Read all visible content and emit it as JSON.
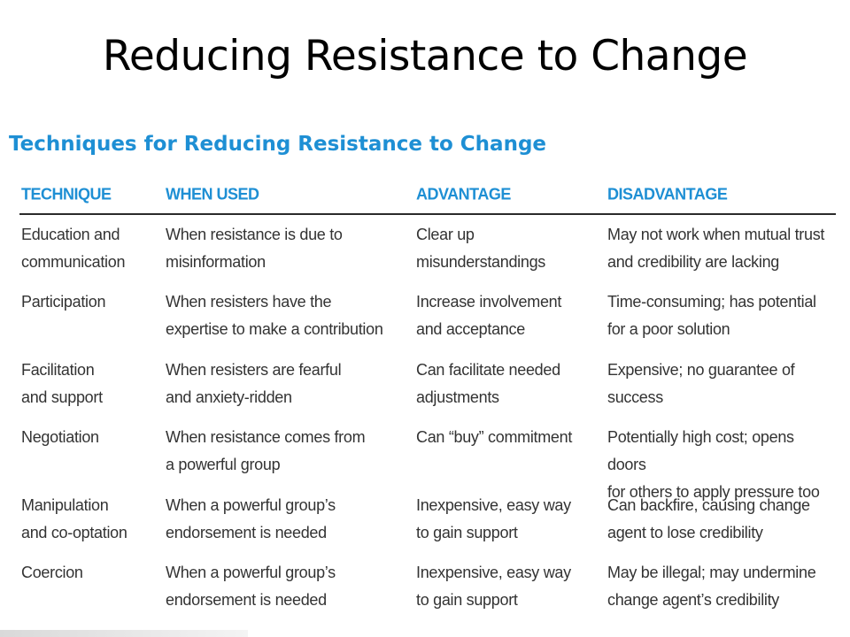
{
  "title": "Reducing Resistance to Change",
  "subtitle": "Techniques for Reducing Resistance to Change",
  "table": {
    "headers": [
      "TECHNIQUE",
      "WHEN USED",
      "ADVANTAGE",
      "DISADVANTAGE"
    ],
    "rows": [
      [
        "Education and\ncommunication",
        "When resistance is due to\nmisinformation",
        "Clear up\nmisunderstandings",
        "May not work when mutual trust\nand credibility are lacking"
      ],
      [
        "Participation",
        "When resisters have the\nexpertise to make a contribution",
        "Increase involvement\nand acceptance",
        "Time-consuming; has potential\nfor a poor solution"
      ],
      [
        "Facilitation\nand support",
        "When resisters are fearful\nand anxiety-ridden",
        "Can facilitate needed\nadjustments",
        "Expensive; no guarantee of\nsuccess"
      ],
      [
        "Negotiation",
        "When resistance comes from\na powerful group",
        "Can “buy” commitment",
        "Potentially high cost; opens doors\nfor others to apply pressure too"
      ],
      [
        "Manipulation\nand co-optation",
        "When a powerful group’s\nendorsement is needed",
        "Inexpensive, easy way\nto gain support",
        "Can backfire, causing change\nagent to lose credibility"
      ],
      [
        "Coercion",
        "When a powerful group’s\nendorsement is needed",
        "Inexpensive, easy way\nto gain support",
        "May be illegal; may undermine\nchange agent’s credibility"
      ]
    ]
  }
}
